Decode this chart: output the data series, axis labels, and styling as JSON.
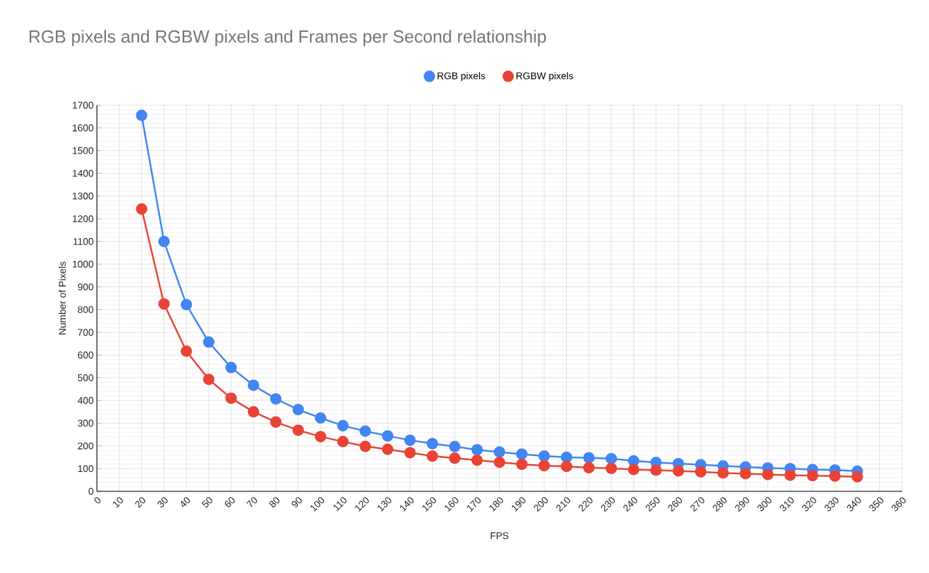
{
  "chart_data": {
    "type": "line",
    "title": "RGB pixels and RGBW pixels and Frames per Second relationship",
    "xlabel": "FPS",
    "ylabel": "Number of Pixels",
    "x": [
      20,
      30,
      40,
      50,
      60,
      70,
      80,
      90,
      100,
      110,
      120,
      130,
      140,
      150,
      160,
      170,
      180,
      190,
      200,
      210,
      220,
      230,
      240,
      250,
      260,
      270,
      280,
      290,
      300,
      310,
      320,
      330,
      340
    ],
    "series": [
      {
        "name": "RGB pixels",
        "color": "#4285f4",
        "values": [
          1655,
          1100,
          822,
          657,
          545,
          467,
          407,
          360,
          323,
          289,
          265,
          244,
          225,
          210,
          197,
          183,
          173,
          164,
          155,
          150,
          148,
          144,
          134,
          127,
          122,
          117,
          112,
          107,
          103,
          100,
          96,
          94,
          89
        ]
      },
      {
        "name": "RGBW pixels",
        "color": "#ea4335",
        "values": [
          1243,
          825,
          617,
          493,
          410,
          350,
          305,
          269,
          241,
          219,
          198,
          185,
          170,
          155,
          146,
          137,
          128,
          119,
          113,
          110,
          104,
          101,
          96,
          93,
          90,
          86,
          81,
          78,
          74,
          71,
          69,
          67,
          64
        ]
      }
    ],
    "xlim": [
      0,
      360
    ],
    "xticks": [
      0,
      10,
      20,
      30,
      40,
      50,
      60,
      70,
      80,
      90,
      100,
      110,
      120,
      130,
      140,
      150,
      160,
      170,
      180,
      190,
      200,
      210,
      220,
      230,
      240,
      250,
      260,
      270,
      280,
      290,
      300,
      310,
      320,
      330,
      340,
      350,
      360
    ],
    "ylim": [
      0,
      1700
    ],
    "yticks": [
      0,
      100,
      200,
      300,
      400,
      500,
      600,
      700,
      800,
      900,
      1000,
      1100,
      1200,
      1300,
      1400,
      1500,
      1600,
      1700
    ],
    "grid": true,
    "legend": "top",
    "marker": "circle",
    "line_style": "solid"
  }
}
